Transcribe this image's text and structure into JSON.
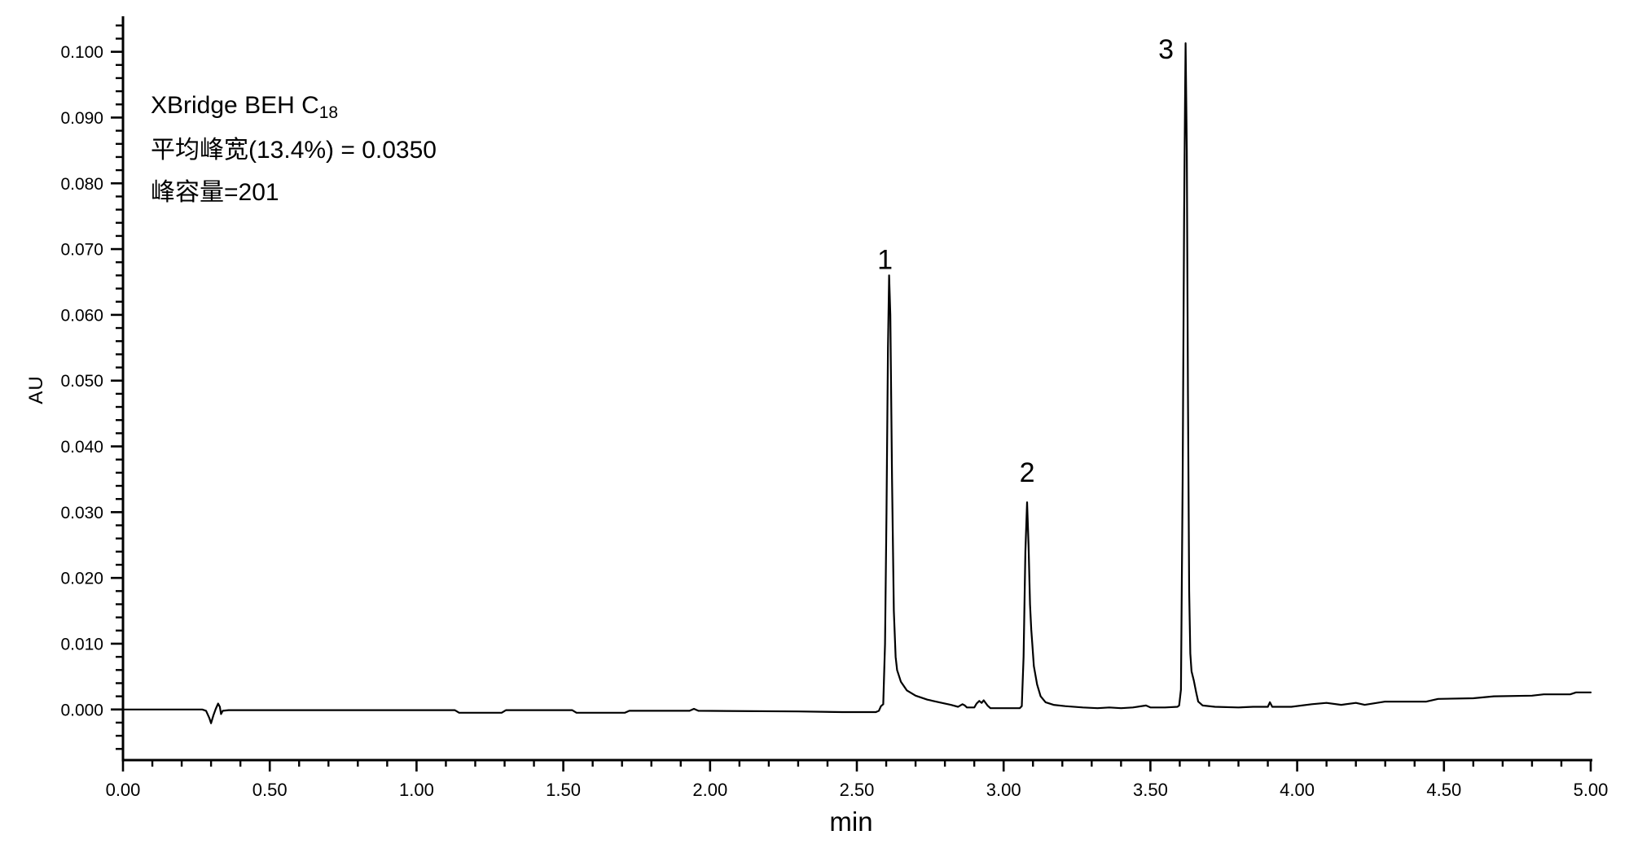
{
  "page": {
    "background": "#ffffff",
    "foreground": "#000000"
  },
  "annotation": {
    "line1_main": "XBridge BEH C",
    "line1_sub": "18",
    "line2": "平均峰宽(13.4%) = 0.0350",
    "line3": "峰容量=201"
  },
  "chart_data": {
    "type": "line",
    "title": "",
    "xlabel": "min",
    "ylabel": "AU",
    "grid": "off",
    "legend": "none",
    "line_color": "#000000",
    "background_color": "#ffffff",
    "xlim": [
      0,
      5
    ],
    "ylim": [
      -0.0077,
      0.1054
    ],
    "x_axis": {
      "min": 0,
      "max": 5,
      "major_step": 0.5,
      "minor_step": 0.1,
      "major_tick_labels": [
        "0.00",
        "0.50",
        "1.00",
        "1.50",
        "2.00",
        "2.50",
        "3.00",
        "3.50",
        "4.00",
        "4.50",
        "5.00"
      ]
    },
    "y_axis": {
      "label_min": 0,
      "label_max": 0.1,
      "major_step": 0.01,
      "minor_step": 0.002,
      "major_tick_labels": [
        "0.000",
        "0.010",
        "0.020",
        "0.030",
        "0.040",
        "0.050",
        "0.060",
        "0.070",
        "0.080",
        "0.090",
        "0.100"
      ]
    },
    "peaks": [
      {
        "label": "1",
        "retention_time_min": 2.61,
        "height_au": 0.066,
        "label_offset": [
          -5,
          -8
        ]
      },
      {
        "label": "2",
        "retention_time_min": 3.08,
        "height_au": 0.0315,
        "label_offset": [
          0,
          -25
        ]
      },
      {
        "label": "3",
        "retention_time_min": 3.62,
        "height_au": 0.1013,
        "label_offset": [
          -24,
          19
        ]
      }
    ],
    "series": [
      {
        "name": "UV chromatogram trace",
        "points": [
          [
            0.0,
            0.0
          ],
          [
            0.27,
            0.0
          ],
          [
            0.283,
            -0.0002
          ],
          [
            0.294,
            -0.0013
          ],
          [
            0.3,
            -0.0021
          ],
          [
            0.308,
            -0.0009
          ],
          [
            0.316,
            0.0001
          ],
          [
            0.324,
            0.0009
          ],
          [
            0.33,
            0.0004
          ],
          [
            0.334,
            -0.0007
          ],
          [
            0.34,
            -0.0002
          ],
          [
            0.36,
            -0.0001
          ],
          [
            1.13,
            -0.0001
          ],
          [
            1.145,
            -0.0005
          ],
          [
            1.29,
            -0.0005
          ],
          [
            1.305,
            -0.0001
          ],
          [
            1.53,
            -0.0001
          ],
          [
            1.545,
            -0.0005
          ],
          [
            1.71,
            -0.0005
          ],
          [
            1.725,
            -0.0002
          ],
          [
            1.93,
            -0.0002
          ],
          [
            1.945,
            0.0001
          ],
          [
            1.96,
            -0.0002
          ],
          [
            2.3,
            -0.0003
          ],
          [
            2.45,
            -0.0004
          ],
          [
            2.565,
            -0.0004
          ],
          [
            2.575,
            -0.0002
          ],
          [
            2.582,
            0.0005
          ],
          [
            2.59,
            0.0008
          ],
          [
            2.596,
            0.01
          ],
          [
            2.601,
            0.03
          ],
          [
            2.606,
            0.055
          ],
          [
            2.61,
            0.066
          ],
          [
            2.614,
            0.06
          ],
          [
            2.62,
            0.035
          ],
          [
            2.626,
            0.015
          ],
          [
            2.632,
            0.008
          ],
          [
            2.637,
            0.006
          ],
          [
            2.65,
            0.0042
          ],
          [
            2.67,
            0.0029
          ],
          [
            2.7,
            0.0021
          ],
          [
            2.74,
            0.0015
          ],
          [
            2.78,
            0.0011
          ],
          [
            2.82,
            0.0007
          ],
          [
            2.845,
            0.0004
          ],
          [
            2.852,
            0.0006
          ],
          [
            2.86,
            0.0008
          ],
          [
            2.868,
            0.0006
          ],
          [
            2.875,
            0.0003
          ],
          [
            2.9,
            0.0003
          ],
          [
            2.908,
            0.0009
          ],
          [
            2.917,
            0.0013
          ],
          [
            2.925,
            0.001
          ],
          [
            2.932,
            0.0014
          ],
          [
            2.945,
            0.0006
          ],
          [
            2.955,
            0.0002
          ],
          [
            3.055,
            0.0002
          ],
          [
            3.062,
            0.0005
          ],
          [
            3.068,
            0.008
          ],
          [
            3.074,
            0.024
          ],
          [
            3.08,
            0.0315
          ],
          [
            3.085,
            0.025
          ],
          [
            3.09,
            0.016
          ],
          [
            3.094,
            0.0122
          ],
          [
            3.098,
            0.0098
          ],
          [
            3.103,
            0.0066
          ],
          [
            3.114,
            0.0038
          ],
          [
            3.126,
            0.002
          ],
          [
            3.143,
            0.0011
          ],
          [
            3.17,
            0.0007
          ],
          [
            3.21,
            0.0005
          ],
          [
            3.27,
            0.0003
          ],
          [
            3.32,
            0.0002
          ],
          [
            3.36,
            0.0003
          ],
          [
            3.4,
            0.0002
          ],
          [
            3.44,
            0.0003
          ],
          [
            3.485,
            0.0006
          ],
          [
            3.5,
            0.0003
          ],
          [
            3.55,
            0.0003
          ],
          [
            3.592,
            0.0004
          ],
          [
            3.598,
            0.0006
          ],
          [
            3.604,
            0.003
          ],
          [
            3.61,
            0.035
          ],
          [
            3.615,
            0.075
          ],
          [
            3.618,
            0.092
          ],
          [
            3.62,
            0.1013
          ],
          [
            3.624,
            0.085
          ],
          [
            3.628,
            0.048
          ],
          [
            3.632,
            0.018
          ],
          [
            3.636,
            0.0085
          ],
          [
            3.64,
            0.0058
          ],
          [
            3.648,
            0.0044
          ],
          [
            3.656,
            0.0026
          ],
          [
            3.663,
            0.0012
          ],
          [
            3.678,
            0.0006
          ],
          [
            3.72,
            0.0004
          ],
          [
            3.8,
            0.0003
          ],
          [
            3.85,
            0.0004
          ],
          [
            3.9,
            0.0004
          ],
          [
            3.907,
            0.0011
          ],
          [
            3.915,
            0.0004
          ],
          [
            3.98,
            0.0004
          ],
          [
            4.05,
            0.0008
          ],
          [
            4.1,
            0.001
          ],
          [
            4.15,
            0.0007
          ],
          [
            4.2,
            0.001
          ],
          [
            4.23,
            0.0007
          ],
          [
            4.3,
            0.0012
          ],
          [
            4.44,
            0.0012
          ],
          [
            4.48,
            0.0016
          ],
          [
            4.6,
            0.0017
          ],
          [
            4.67,
            0.002
          ],
          [
            4.8,
            0.0021
          ],
          [
            4.84,
            0.0023
          ],
          [
            4.93,
            0.0023
          ],
          [
            4.95,
            0.0026
          ],
          [
            5.0,
            0.0026
          ]
        ]
      }
    ]
  }
}
